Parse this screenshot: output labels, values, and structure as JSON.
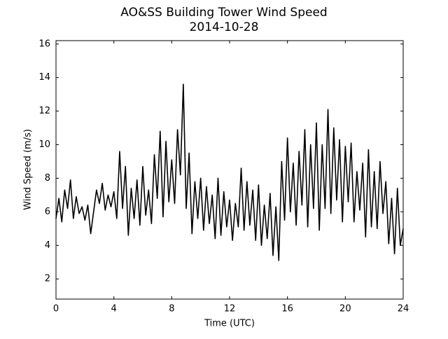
{
  "chart_data": {
    "type": "line",
    "title": "AO&SS Building Tower Wind Speed",
    "subtitle": "2014-10-28",
    "x_label": "Time (UTC)",
    "y_label": "Wind Speed (m/s)",
    "x": [
      0,
      0.2,
      0.4,
      0.6,
      0.8,
      1,
      1.2,
      1.4,
      1.6,
      1.8,
      2,
      2.2,
      2.4,
      2.6,
      2.8,
      3,
      3.2,
      3.4,
      3.6,
      3.8,
      4,
      4.2,
      4.4,
      4.6,
      4.8,
      5,
      5.2,
      5.4,
      5.6,
      5.8,
      6,
      6.2,
      6.4,
      6.6,
      6.8,
      7,
      7.2,
      7.4,
      7.6,
      7.8,
      8,
      8.2,
      8.4,
      8.6,
      8.8,
      9,
      9.2,
      9.4,
      9.6,
      9.8,
      10,
      10.2,
      10.4,
      10.6,
      10.8,
      11,
      11.2,
      11.4,
      11.6,
      11.8,
      12,
      12.2,
      12.4,
      12.6,
      12.8,
      13,
      13.2,
      13.4,
      13.6,
      13.8,
      14,
      14.2,
      14.4,
      14.6,
      14.8,
      15,
      15.2,
      15.4,
      15.6,
      15.8,
      16,
      16.2,
      16.4,
      16.6,
      16.8,
      17,
      17.2,
      17.4,
      17.6,
      17.8,
      18,
      18.2,
      18.4,
      18.6,
      18.8,
      19,
      19.2,
      19.4,
      19.6,
      19.8,
      20,
      20.2,
      20.4,
      20.6,
      20.8,
      21,
      21.2,
      21.4,
      21.6,
      21.8,
      22,
      22.2,
      22.4,
      22.6,
      22.8,
      23,
      23.2,
      23.4,
      23.6,
      23.8,
      24
    ],
    "series": [
      {
        "name": "Wind Speed",
        "color": "#000000",
        "values": [
          5.6,
          6.8,
          5.4,
          7.3,
          6.2,
          7.9,
          5.6,
          6.9,
          5.9,
          6.3,
          5.5,
          6.4,
          4.7,
          6.0,
          7.3,
          6.5,
          7.7,
          6.1,
          7.0,
          6.3,
          7.2,
          5.6,
          9.6,
          6.2,
          8.7,
          4.6,
          7.4,
          5.6,
          7.9,
          5.2,
          8.7,
          5.8,
          7.3,
          5.3,
          9.4,
          6.8,
          10.8,
          5.7,
          10.2,
          6.6,
          9.1,
          6.5,
          10.9,
          8.2,
          13.6,
          6.2,
          9.5,
          4.7,
          7.8,
          5.6,
          8.0,
          4.9,
          7.5,
          5.3,
          7.0,
          4.4,
          8.0,
          4.6,
          7.2,
          5.1,
          6.7,
          4.3,
          6.5,
          5.1,
          8.6,
          4.9,
          7.8,
          5.2,
          7.3,
          4.3,
          7.6,
          4.0,
          6.4,
          4.4,
          7.1,
          3.4,
          6.3,
          3.1,
          9.0,
          5.5,
          10.4,
          6.0,
          8.9,
          5.2,
          9.6,
          6.4,
          10.9,
          5.1,
          10.0,
          6.2,
          11.3,
          4.9,
          10.0,
          6.2,
          12.1,
          5.9,
          11.0,
          6.7,
          10.3,
          5.4,
          9.9,
          6.6,
          10.1,
          5.4,
          8.4,
          6.1,
          8.9,
          4.5,
          9.7,
          5.1,
          8.4,
          5.0,
          9.0,
          5.9,
          7.8,
          4.1,
          6.8,
          3.5,
          7.4,
          4.0,
          5.0
        ]
      }
    ],
    "xlim": [
      0,
      24
    ],
    "xticks": [
      0,
      4,
      8,
      12,
      16,
      20,
      24
    ],
    "ylim": [
      0.8,
      16.2
    ],
    "yticks": [
      2,
      4,
      6,
      8,
      10,
      12,
      14,
      16
    ]
  }
}
